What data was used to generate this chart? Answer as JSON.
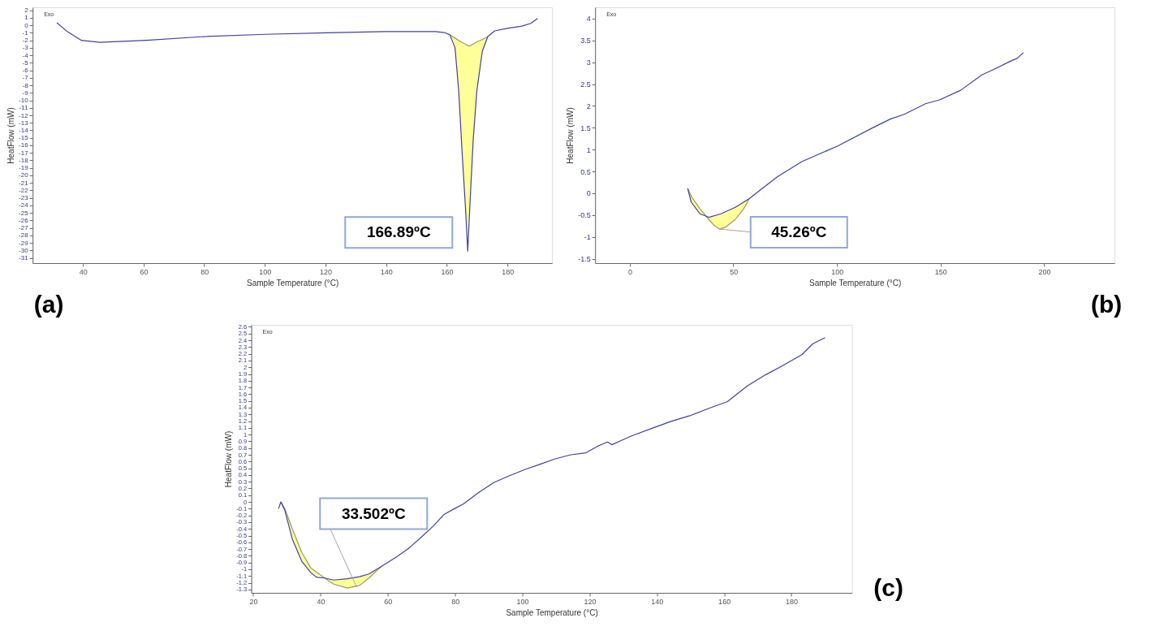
{
  "chart_data": [
    {
      "type": "line",
      "xlabel": "Sample Temperature (°C)",
      "ylabel": "HeatFlow (mW)",
      "xlim": [
        23.4,
        194.7
      ],
      "ylim": [
        -31.7,
        2.4
      ],
      "xticks": [
        40,
        60,
        80,
        100,
        120,
        140,
        160,
        180
      ],
      "yticks": [
        -31,
        -30,
        -29,
        -28,
        -27,
        -26,
        -25,
        -24,
        -23,
        -22,
        -21,
        -20,
        -19,
        -18,
        -17,
        -16,
        -15,
        -14,
        -13,
        -12,
        -11,
        -10,
        -9,
        -8,
        -7,
        -6,
        -5,
        -4,
        -3,
        -2,
        -1,
        0,
        1,
        2
      ],
      "series": [
        {
          "color": "#4040a0",
          "x": [
            31.4,
            34.8,
            39.5,
            45.5,
            61,
            80,
            100.2,
            120.5,
            139.5,
            156.2,
            159.2,
            161,
            162.7,
            163.9,
            165.1,
            166.1,
            166.89,
            167.6,
            168.7,
            169.9,
            171.7,
            173.5,
            175.8,
            180,
            184.8,
            187.7,
            189.9
          ],
          "values": [
            0.35,
            -0.83,
            -2.0,
            -2.27,
            -2.0,
            -1.5,
            -1.2,
            -1.0,
            -0.83,
            -0.83,
            -0.96,
            -1.27,
            -3.0,
            -8.7,
            -17.4,
            -24,
            -30.1,
            -24,
            -15.2,
            -8.7,
            -3.45,
            -1.5,
            -0.74,
            -0.4,
            -0.1,
            0.26,
            0.9
          ]
        },
        {
          "type": "line",
          "color": "#9a9a60",
          "x": [
            161,
            162.7,
            163.9,
            165.1,
            166.1,
            166.89,
            167.6,
            168.7,
            169.9,
            171.7,
            173.5
          ],
          "lower": [
            -1.27,
            -3.0,
            -8.7,
            -17.4,
            -24,
            -30.1,
            -24,
            -15.2,
            -8.7,
            -3.45,
            -1.5
          ],
          "upper": [
            -1.27,
            -1.7,
            -2.0,
            -2.3,
            -2.5,
            -2.7,
            -2.75,
            -2.5,
            -2.2,
            -1.9,
            -1.5
          ],
          "values": [
            -1.27,
            -1.7,
            -2.0,
            -2.3,
            -2.5,
            -2.7,
            -2.75,
            -2.5,
            -2.2,
            -1.9,
            -1.5
          ]
        }
      ],
      "annotations": [
        "Exo",
        "(a)",
        {
          "text": "166.89ºC",
          "x": 166.89,
          "y": -30.1
        }
      ]
    },
    {
      "type": "line",
      "xlabel": "Sample Temperature (°C)",
      "ylabel": "HeatFlow (mW)",
      "xlim": [
        -16.8,
        234
      ],
      "ylim": [
        -1.6,
        4.26
      ],
      "xticks": [
        0,
        50,
        100,
        150,
        200
      ],
      "yticks": [
        -1.5,
        -1,
        -0.5,
        0,
        0.5,
        1,
        1.5,
        2,
        2.5,
        3,
        3.5,
        4
      ],
      "series": [
        {
          "color": "#4040a0",
          "x": [
            27.9,
            29.6,
            33.8,
            38.1,
            44,
            50.9,
            57.7,
            62.8,
            71.3,
            83.2,
            100.2,
            117.2,
            125.7,
            132.5,
            142.7,
            149.5,
            159.7,
            169.9,
            176.7,
            183.5,
            186.9,
            190
          ],
          "values": [
            0.11,
            -0.2,
            -0.47,
            -0.55,
            -0.47,
            -0.32,
            -0.12,
            0.07,
            0.38,
            0.73,
            1.08,
            1.5,
            1.7,
            1.81,
            2.05,
            2.14,
            2.36,
            2.71,
            2.86,
            3.02,
            3.09,
            3.22
          ]
        },
        {
          "type": "line",
          "color": "#9a9a60",
          "x": [
            27.9,
            30,
            33.8,
            38.1,
            41,
            43.2,
            46,
            50.9,
            55,
            57.7
          ],
          "upper": [
            0.11,
            -0.25,
            -0.47,
            -0.55,
            -0.53,
            -0.5,
            -0.45,
            -0.32,
            -0.2,
            -0.12
          ],
          "lower": [
            0.11,
            -0.1,
            -0.35,
            -0.6,
            -0.75,
            -0.82,
            -0.78,
            -0.6,
            -0.35,
            -0.12
          ],
          "values": [
            0.11,
            -0.1,
            -0.35,
            -0.6,
            -0.75,
            -0.82,
            -0.78,
            -0.6,
            -0.35,
            -0.12
          ]
        }
      ],
      "annotations": [
        "Exo",
        "(b)",
        {
          "text": "45.26ºC",
          "x": 43.2,
          "y": -0.82
        }
      ]
    },
    {
      "type": "line",
      "xlabel": "Sample Temperature (°C)",
      "ylabel": "HeatFlow (mW)",
      "xlim": [
        19.4,
        198
      ],
      "ylim": [
        -1.35,
        2.63
      ],
      "xticks": [
        20,
        40,
        60,
        80,
        100,
        120,
        140,
        160,
        180
      ],
      "yticks": [
        -1.3,
        -1.2,
        -1.1,
        -1,
        -0.9,
        -0.8,
        -0.7,
        -0.6,
        -0.5,
        -0.4,
        -0.3,
        -0.2,
        -0.1,
        0,
        0.1,
        0.2,
        0.3,
        0.4,
        0.5,
        0.6,
        0.7,
        0.8,
        0.9,
        1,
        1.1,
        1.2,
        1.3,
        1.4,
        1.5,
        1.6,
        1.7,
        1.8,
        1.9,
        2,
        2.1,
        2.2,
        2.3,
        2.4,
        2.5,
        2.6
      ],
      "series": [
        {
          "color": "#4040a0",
          "x": [
            27.5,
            28.2,
            29.4,
            31.6,
            34.4,
            37.1,
            38.9,
            41.2,
            43.9,
            48,
            51.6,
            54.4,
            58,
            62.5,
            66.2,
            69.8,
            73.5,
            76.6,
            79.8,
            82.5,
            87,
            91.6,
            96.2,
            100.7,
            105.3,
            109.8,
            114.4,
            118.9,
            122.5,
            125.3,
            126.6,
            132.5,
            138.9,
            144.4,
            149.8,
            156,
            161,
            166.8,
            172.4,
            177.3,
            183.2,
            186.4,
            190
          ],
          "values": [
            -0.1,
            0,
            -0.13,
            -0.55,
            -0.88,
            -1.05,
            -1.12,
            -1.13,
            -1.16,
            -1.14,
            -1.11,
            -1.07,
            -0.96,
            -0.82,
            -0.69,
            -0.53,
            -0.36,
            -0.19,
            -0.1,
            -0.03,
            0.14,
            0.29,
            0.39,
            0.48,
            0.56,
            0.64,
            0.7,
            0.73,
            0.83,
            0.89,
            0.85,
            0.98,
            1.1,
            1.2,
            1.28,
            1.4,
            1.49,
            1.72,
            1.89,
            2.02,
            2.19,
            2.35,
            2.44
          ]
        },
        {
          "type": "line",
          "color": "#9a9a60",
          "x": [
            28.2,
            29.4,
            31.6,
            34.4,
            37.1,
            41.2,
            43.9,
            48,
            51.6,
            54.4,
            58
          ],
          "upper": [
            0,
            -0.13,
            -0.55,
            -0.88,
            -1.05,
            -1.13,
            -1.16,
            -1.14,
            -1.11,
            -1.07,
            -0.96
          ],
          "lower": [
            0,
            -0.1,
            -0.4,
            -0.75,
            -0.98,
            -1.13,
            -1.22,
            -1.28,
            -1.24,
            -1.13,
            -0.96
          ],
          "values": [
            0,
            -0.1,
            -0.4,
            -0.75,
            -0.98,
            -1.13,
            -1.22,
            -1.28,
            -1.24,
            -1.13,
            -0.96
          ]
        }
      ],
      "annotations": [
        "Exo",
        "(c)",
        {
          "text": "33.502ºC",
          "x": 50.7,
          "y": -1.26
        }
      ]
    }
  ]
}
